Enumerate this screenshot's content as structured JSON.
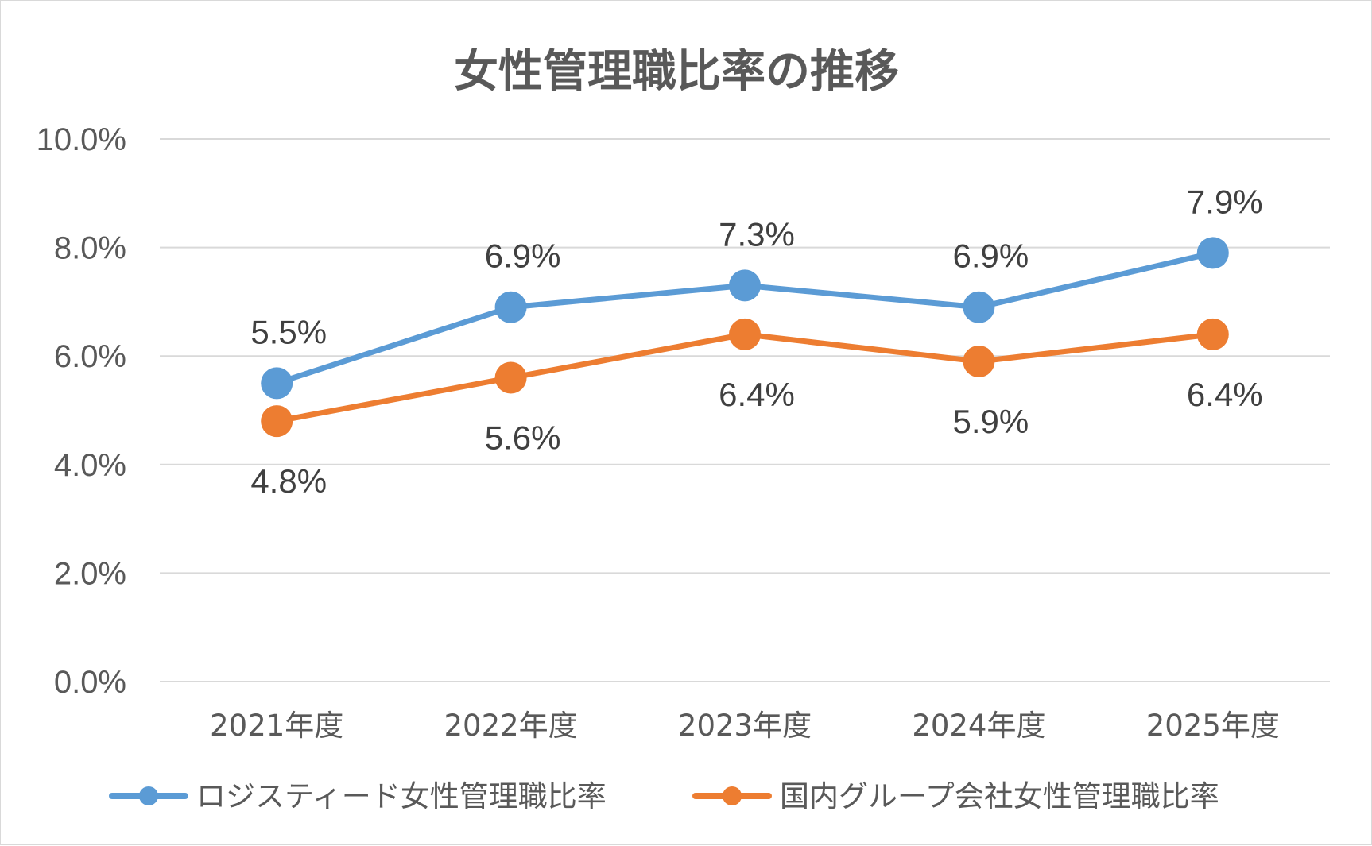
{
  "chart_data": {
    "type": "line",
    "title": "女性管理職比率の推移",
    "categories": [
      "2021年度",
      "2022年度",
      "2023年度",
      "2024年度",
      "2025年度"
    ],
    "y_ticks": [
      "0.0%",
      "2.0%",
      "4.0%",
      "6.0%",
      "8.0%",
      "10.0%"
    ],
    "ylim": [
      0,
      10
    ],
    "y_unit": "%",
    "grid": true,
    "legend_position": "bottom",
    "series": [
      {
        "name": "ロジスティード女性管理職比率",
        "values": [
          5.5,
          6.9,
          7.3,
          6.9,
          7.9
        ],
        "labels": [
          "5.5%",
          "6.9%",
          "7.3%",
          "6.9%",
          "7.9%"
        ],
        "label_position": "above",
        "color": "#5b9bd5"
      },
      {
        "name": "国内グループ会社女性管理職比率",
        "values": [
          4.8,
          5.6,
          6.4,
          5.9,
          6.4
        ],
        "labels": [
          "4.8%",
          "5.6%",
          "6.4%",
          "5.9%",
          "6.4%"
        ],
        "label_position": "below",
        "color": "#ed7d31"
      }
    ]
  }
}
